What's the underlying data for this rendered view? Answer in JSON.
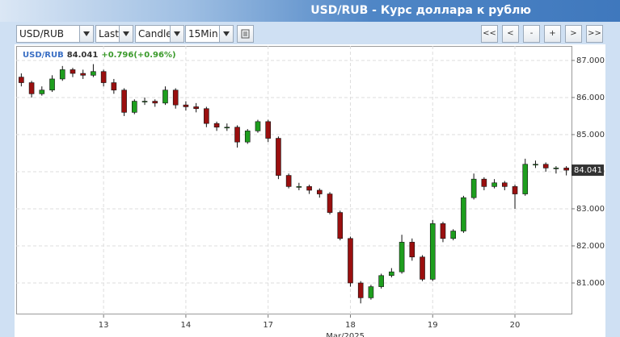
{
  "header": {
    "title": "USD/RUB - Курс доллара к рублю"
  },
  "toolbar": {
    "symbol": "USD/RUB",
    "price": "Last",
    "style": "Candle",
    "interval": "15Min",
    "nav": [
      "<<",
      "<",
      "-",
      "+",
      ">",
      ">>"
    ]
  },
  "chart_data": {
    "type": "candlestick",
    "symbol": "USD/RUB",
    "change": "+0.796(+0.96%)",
    "xlabel": "Mar/2025",
    "categories": [
      null,
      null,
      null,
      null,
      null,
      null,
      null,
      null,
      "13",
      null,
      null,
      null,
      null,
      null,
      null,
      null,
      "14",
      null,
      null,
      null,
      null,
      null,
      null,
      null,
      "17",
      null,
      null,
      null,
      null,
      null,
      null,
      null,
      "18",
      null,
      null,
      null,
      null,
      null,
      null,
      null,
      "19",
      null,
      null,
      null,
      null,
      null,
      null,
      null,
      "20",
      null,
      null,
      null,
      null,
      null
    ],
    "open": [
      86.55,
      86.4,
      86.1,
      86.2,
      86.5,
      86.75,
      86.65,
      86.6,
      86.7,
      86.4,
      86.2,
      85.6,
      85.9,
      85.9,
      85.85,
      86.2,
      85.8,
      85.75,
      85.7,
      85.3,
      85.2,
      85.2,
      84.8,
      85.1,
      85.35,
      84.9,
      83.9,
      83.6,
      83.6,
      83.5,
      83.4,
      82.9,
      82.2,
      81.0,
      80.6,
      80.9,
      81.2,
      81.3,
      82.1,
      81.7,
      81.1,
      82.6,
      82.2,
      82.4,
      83.3,
      83.8,
      83.6,
      83.7,
      83.6,
      83.4,
      84.2,
      84.2,
      84.1,
      84.1
    ],
    "high": [
      86.65,
      86.45,
      86.3,
      86.6,
      86.85,
      86.8,
      86.75,
      86.9,
      86.75,
      86.5,
      86.25,
      85.95,
      86.0,
      85.95,
      86.3,
      86.25,
      85.9,
      85.85,
      85.75,
      85.35,
      85.3,
      85.25,
      85.15,
      85.4,
      85.4,
      84.95,
      83.95,
      83.7,
      83.65,
      83.55,
      83.45,
      82.95,
      82.25,
      81.05,
      80.95,
      81.25,
      81.4,
      82.3,
      82.2,
      81.75,
      82.7,
      82.65,
      82.45,
      83.35,
      83.95,
      83.85,
      83.8,
      83.75,
      83.65,
      84.35,
      84.3,
      84.25,
      84.15,
      84.15
    ],
    "low": [
      86.3,
      86.0,
      86.05,
      86.15,
      86.45,
      86.55,
      86.5,
      86.55,
      86.3,
      86.1,
      85.5,
      85.55,
      85.8,
      85.75,
      85.8,
      85.7,
      85.65,
      85.6,
      85.2,
      85.1,
      85.1,
      84.65,
      84.75,
      85.05,
      84.8,
      83.8,
      83.55,
      83.5,
      83.4,
      83.3,
      82.85,
      82.15,
      80.9,
      80.45,
      80.55,
      80.85,
      81.15,
      81.25,
      81.6,
      81.05,
      81.05,
      82.1,
      82.15,
      82.35,
      83.25,
      83.5,
      83.55,
      83.5,
      83.0,
      83.35,
      84.1,
      84.0,
      83.95,
      83.9
    ],
    "close": [
      86.4,
      86.1,
      86.2,
      86.5,
      86.75,
      86.65,
      86.6,
      86.7,
      86.4,
      86.2,
      85.6,
      85.9,
      85.9,
      85.85,
      86.2,
      85.8,
      85.75,
      85.7,
      85.3,
      85.2,
      85.2,
      84.8,
      85.1,
      85.35,
      84.9,
      83.9,
      83.6,
      83.6,
      83.5,
      83.4,
      82.9,
      82.2,
      81.0,
      80.6,
      80.9,
      81.2,
      81.3,
      82.1,
      81.7,
      81.1,
      82.6,
      82.2,
      82.4,
      83.3,
      83.8,
      83.6,
      83.7,
      83.6,
      83.4,
      84.2,
      84.2,
      84.1,
      84.1,
      84.041
    ],
    "colors": {
      "up": "#1e9e1e",
      "down": "#9a0f0f"
    },
    "ylim": [
      80.152,
      87.39
    ],
    "yticks": [
      {
        "value": 81,
        "label": "81.000"
      },
      {
        "value": 82,
        "label": "82.000"
      },
      {
        "value": 83,
        "label": "83.000"
      },
      {
        "value": 84,
        "label": "84.000"
      },
      {
        "value": 85,
        "label": "85.000"
      },
      {
        "value": 86,
        "label": "86.000"
      },
      {
        "value": 87,
        "label": "87.000"
      }
    ],
    "grid": true,
    "legend": "top-left"
  }
}
